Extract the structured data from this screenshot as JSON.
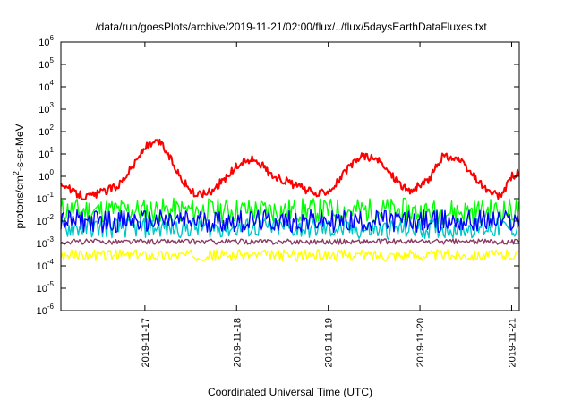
{
  "chart_data": {
    "type": "line",
    "title": "/data/run/goesPlots/archive/2019-11-21/02:00/flux/../flux/5daysEarthDataFluxes.txt",
    "xlabel": "Coordinated Universal Time (UTC)",
    "ylabel_main": "protons/cm",
    "ylabel_sup": "2",
    "ylabel_rest": "-s-sr-MeV",
    "y_scale": "log",
    "ylim": [
      1e-06,
      1000000.0
    ],
    "y_ticks": [
      {
        "base": "10",
        "exp": "-6"
      },
      {
        "base": "10",
        "exp": "-5"
      },
      {
        "base": "10",
        "exp": "-4"
      },
      {
        "base": "10",
        "exp": "-3"
      },
      {
        "base": "10",
        "exp": "-2"
      },
      {
        "base": "10",
        "exp": "-1"
      },
      {
        "base": "10",
        "exp": "0"
      },
      {
        "base": "10",
        "exp": "1"
      },
      {
        "base": "10",
        "exp": "2"
      },
      {
        "base": "10",
        "exp": "3"
      },
      {
        "base": "10",
        "exp": "4"
      },
      {
        "base": "10",
        "exp": "5"
      },
      {
        "base": "10",
        "exp": "6"
      }
    ],
    "xlim": [
      "2019-11-16T02:00",
      "2019-11-21T02:00"
    ],
    "x_ticks": [
      "2019-11-17",
      "2019-11-18",
      "2019-11-19",
      "2019-11-20",
      "2019-11-21"
    ],
    "grid": false,
    "series": [
      {
        "color": "#ff0000",
        "x": [
          "2019-11-16T02:00",
          "2019-11-16T05:00",
          "2019-11-16T09:00",
          "2019-11-16T13:00",
          "2019-11-16T17:00",
          "2019-11-16T21:00",
          "2019-11-17T00:00",
          "2019-11-17T04:00",
          "2019-11-17T07:00",
          "2019-11-17T10:00",
          "2019-11-17T13:00",
          "2019-11-17T17:00",
          "2019-11-17T21:00",
          "2019-11-18T01:00",
          "2019-11-18T05:00",
          "2019-11-18T09:00",
          "2019-11-18T13:00",
          "2019-11-18T17:00",
          "2019-11-18T21:00",
          "2019-11-19T01:00",
          "2019-11-19T05:00",
          "2019-11-19T09:00",
          "2019-11-19T13:00",
          "2019-11-19T17:00",
          "2019-11-19T21:00",
          "2019-11-20T02:00",
          "2019-11-20T06:00",
          "2019-11-20T10:00",
          "2019-11-20T14:00",
          "2019-11-20T18:00",
          "2019-11-20T21:00",
          "2019-11-21T00:00",
          "2019-11-21T02:00"
        ],
        "y": [
          0.6,
          0.2,
          0.12,
          0.2,
          0.4,
          3,
          20,
          35,
          5,
          0.6,
          0.15,
          0.2,
          0.8,
          4,
          6,
          1.2,
          0.6,
          0.3,
          0.15,
          0.3,
          2,
          9,
          5,
          1,
          0.2,
          0.6,
          8,
          6,
          1,
          0.2,
          0.12,
          1,
          1.5
        ]
      },
      {
        "color": "#00ff00",
        "x": [
          "2019-11-16T02:00",
          "2019-11-17T12:00",
          "2019-11-18T12:00",
          "2019-11-19T12:00",
          "2019-11-19T20:00",
          "2019-11-20T00:00",
          "2019-11-21T02:00"
        ],
        "y": [
          0.03,
          0.03,
          0.03,
          0.03,
          0.03,
          0.025,
          0.03
        ]
      },
      {
        "color": "#0000ff",
        "x": [
          "2019-11-16T02:00",
          "2019-11-17T12:00",
          "2019-11-18T12:00",
          "2019-11-19T12:00",
          "2019-11-20T12:00",
          "2019-11-21T02:00"
        ],
        "y": [
          0.01,
          0.01,
          0.01,
          0.01,
          0.01,
          0.01
        ]
      },
      {
        "color": "#00c8c8",
        "x": [
          "2019-11-16T02:00",
          "2019-11-17T12:00",
          "2019-11-18T12:00",
          "2019-11-19T12:00",
          "2019-11-20T12:00",
          "2019-11-21T02:00"
        ],
        "y": [
          0.005,
          0.005,
          0.005,
          0.004,
          0.005,
          0.005
        ]
      },
      {
        "color": "#ffff00",
        "x": [
          "2019-11-16T02:00",
          "2019-11-17T12:00",
          "2019-11-18T12:00",
          "2019-11-19T12:00",
          "2019-11-20T12:00",
          "2019-11-21T02:00"
        ],
        "y": [
          0.0003,
          0.0003,
          0.0003,
          0.0003,
          0.0003,
          0.0003
        ]
      },
      {
        "color": "#8b3a62",
        "x": [
          "2019-11-16T02:00",
          "2019-11-17T12:00",
          "2019-11-18T12:00",
          "2019-11-19T12:00",
          "2019-11-20T12:00",
          "2019-11-21T02:00"
        ],
        "y": [
          0.0012,
          0.0012,
          0.0012,
          0.0012,
          0.0012,
          0.0012
        ]
      }
    ]
  }
}
